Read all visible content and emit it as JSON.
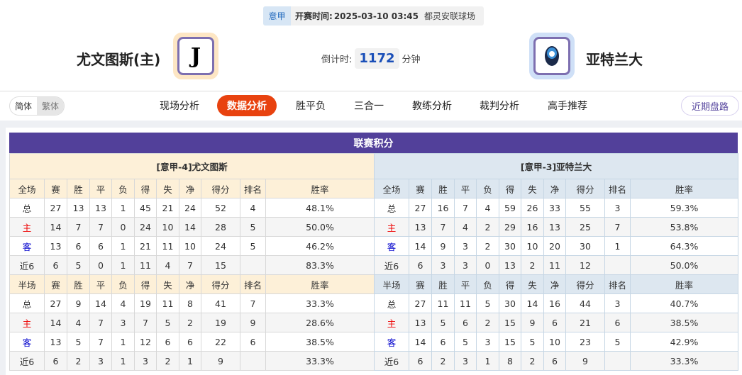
{
  "match": {
    "league": "意甲",
    "time_label": "开赛时间:",
    "time": "2025-03-10 03:45",
    "venue": "都灵安联球场"
  },
  "home": {
    "name": "尤文图斯(主)",
    "logo": "juventus-logo",
    "logo_text": "JUVENTUS"
  },
  "away": {
    "name": "亚特兰大",
    "logo": "atalanta-logo"
  },
  "countdown": {
    "label": "倒计时:",
    "value": "1172",
    "unit": "分钟"
  },
  "lang": {
    "simplified": "简体",
    "traditional": "繁体"
  },
  "nav": [
    {
      "label": "现场分析"
    },
    {
      "label": "数据分析",
      "active": true
    },
    {
      "label": "胜平负"
    },
    {
      "label": "三合一"
    },
    {
      "label": "教练分析"
    },
    {
      "label": "裁判分析"
    },
    {
      "label": "高手推荐"
    }
  ],
  "recent_button": "近期盘路",
  "section_title": "联赛积分",
  "colors": {
    "accent": "#e8420f",
    "title_bar": "#52409a",
    "home_header": "#fdf0d8",
    "away_header": "#dde7f0",
    "home_row": "#e00000",
    "away_row": "#0000cc"
  },
  "tables": [
    {
      "title": "[意甲-4]尤文图斯",
      "full_header": [
        "全场",
        "赛",
        "胜",
        "平",
        "负",
        "得",
        "失",
        "净",
        "得分",
        "排名",
        "胜率"
      ],
      "full_rows": [
        [
          "总",
          "27",
          "13",
          "13",
          "1",
          "45",
          "21",
          "24",
          "52",
          "4",
          "48.1%"
        ],
        [
          "主",
          "14",
          "7",
          "7",
          "0",
          "24",
          "10",
          "14",
          "28",
          "5",
          "50.0%"
        ],
        [
          "客",
          "13",
          "6",
          "6",
          "1",
          "21",
          "11",
          "10",
          "24",
          "5",
          "46.2%"
        ],
        [
          "近6",
          "6",
          "5",
          "0",
          "1",
          "11",
          "4",
          "7",
          "15",
          "",
          "83.3%"
        ]
      ],
      "half_header": [
        "半场",
        "赛",
        "胜",
        "平",
        "负",
        "得",
        "失",
        "净",
        "得分",
        "排名",
        "胜率"
      ],
      "half_rows": [
        [
          "总",
          "27",
          "9",
          "14",
          "4",
          "19",
          "11",
          "8",
          "41",
          "7",
          "33.3%"
        ],
        [
          "主",
          "14",
          "4",
          "7",
          "3",
          "7",
          "5",
          "2",
          "19",
          "9",
          "28.6%"
        ],
        [
          "客",
          "13",
          "5",
          "7",
          "1",
          "12",
          "6",
          "6",
          "22",
          "6",
          "38.5%"
        ],
        [
          "近6",
          "6",
          "2",
          "3",
          "1",
          "3",
          "2",
          "1",
          "9",
          "",
          "33.3%"
        ]
      ]
    },
    {
      "title": "[意甲-3]亚特兰大",
      "full_header": [
        "全场",
        "赛",
        "胜",
        "平",
        "负",
        "得",
        "失",
        "净",
        "得分",
        "排名",
        "胜率"
      ],
      "full_rows": [
        [
          "总",
          "27",
          "16",
          "7",
          "4",
          "59",
          "26",
          "33",
          "55",
          "3",
          "59.3%"
        ],
        [
          "主",
          "13",
          "7",
          "4",
          "2",
          "29",
          "16",
          "13",
          "25",
          "7",
          "53.8%"
        ],
        [
          "客",
          "14",
          "9",
          "3",
          "2",
          "30",
          "10",
          "20",
          "30",
          "1",
          "64.3%"
        ],
        [
          "近6",
          "6",
          "3",
          "3",
          "0",
          "13",
          "2",
          "11",
          "12",
          "",
          "50.0%"
        ]
      ],
      "half_header": [
        "半场",
        "赛",
        "胜",
        "平",
        "负",
        "得",
        "失",
        "净",
        "得分",
        "排名",
        "胜率"
      ],
      "half_rows": [
        [
          "总",
          "27",
          "11",
          "11",
          "5",
          "30",
          "14",
          "16",
          "44",
          "3",
          "40.7%"
        ],
        [
          "主",
          "13",
          "5",
          "6",
          "2",
          "15",
          "9",
          "6",
          "21",
          "6",
          "38.5%"
        ],
        [
          "客",
          "14",
          "6",
          "5",
          "3",
          "15",
          "5",
          "10",
          "23",
          "5",
          "42.9%"
        ],
        [
          "近6",
          "6",
          "2",
          "3",
          "1",
          "8",
          "2",
          "6",
          "9",
          "",
          "33.3%"
        ]
      ]
    }
  ]
}
